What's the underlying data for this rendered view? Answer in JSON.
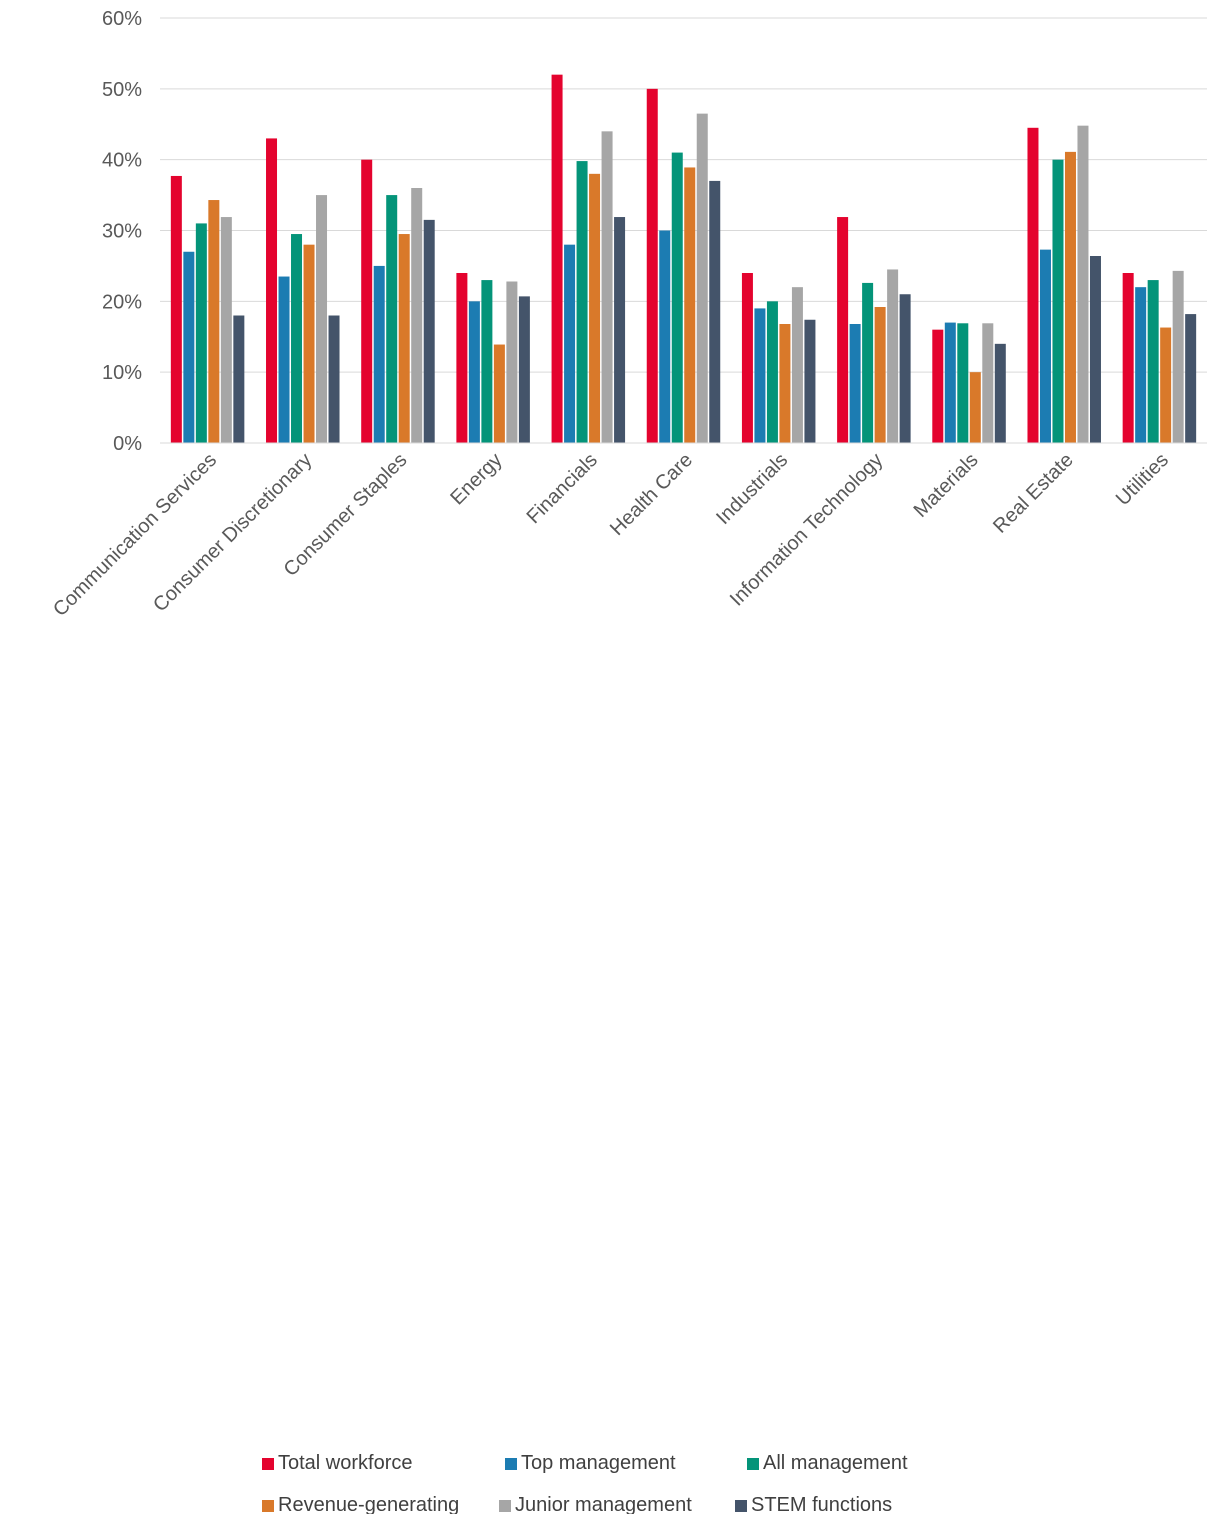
{
  "chart_data": {
    "type": "bar",
    "title": "",
    "xlabel": "",
    "ylabel": "",
    "ylim": [
      0,
      60
    ],
    "y_ticks": [
      0,
      10,
      20,
      30,
      40,
      50,
      60
    ],
    "y_tick_format": "percent",
    "grid": "horizontal",
    "legend_position": "bottom",
    "categories": [
      "Communication Services",
      "Consumer Discretionary",
      "Consumer Staples",
      "Energy",
      "Financials",
      "Health Care",
      "Industrials",
      "Information Technology",
      "Materials",
      "Real Estate",
      "Utilities"
    ],
    "series": [
      {
        "name": "Total workforce",
        "color": "#e4032e",
        "values": [
          37.7,
          43,
          40,
          24,
          52,
          50,
          24,
          31.9,
          16,
          44.5,
          24
        ]
      },
      {
        "name": "Top management",
        "color": "#1c7cb2",
        "values": [
          27,
          23.5,
          25,
          20,
          28,
          30,
          19,
          16.8,
          17,
          27.3,
          22
        ]
      },
      {
        "name": "All management",
        "color": "#049479",
        "values": [
          31,
          29.5,
          35,
          23,
          39.8,
          41,
          20,
          22.6,
          16.9,
          40,
          23
        ]
      },
      {
        "name": "Revenue-generating",
        "color": "#d9792a",
        "values": [
          34.3,
          28,
          29.5,
          13.9,
          38,
          38.9,
          16.8,
          19.2,
          10,
          41.1,
          16.3
        ]
      },
      {
        "name": "Junior management",
        "color": "#a6a6a6",
        "values": [
          31.9,
          35,
          36,
          22.8,
          44,
          46.5,
          22,
          24.5,
          16.9,
          44.8,
          24.3
        ]
      },
      {
        "name": "STEM functions",
        "color": "#44546a",
        "values": [
          18,
          18,
          31.5,
          20.7,
          31.9,
          37,
          17.4,
          21,
          14,
          26.4,
          18.2
        ]
      }
    ]
  }
}
